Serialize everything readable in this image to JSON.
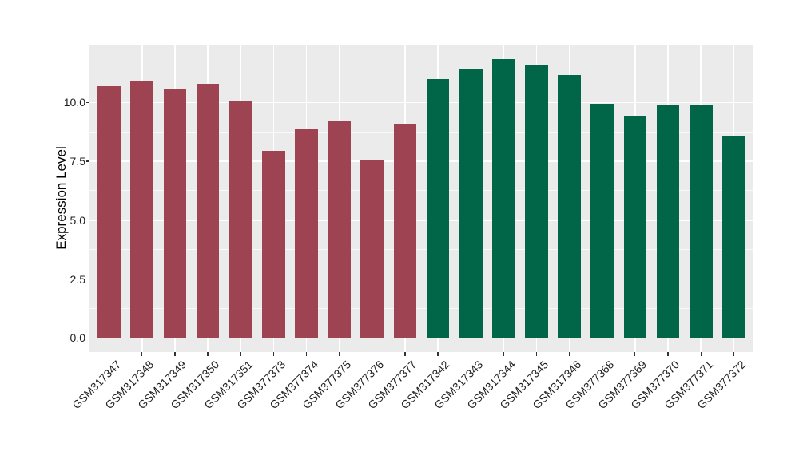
{
  "chart_data": {
    "type": "bar",
    "title": "",
    "xlabel": "",
    "ylabel": "Expression Level",
    "categories": [
      "GSM317347",
      "GSM317348",
      "GSM317349",
      "GSM317350",
      "GSM317351",
      "GSM377373",
      "GSM377374",
      "GSM377375",
      "GSM377376",
      "GSM377377",
      "GSM317342",
      "GSM317343",
      "GSM317344",
      "GSM317345",
      "GSM317346",
      "GSM377368",
      "GSM377369",
      "GSM377370",
      "GSM377371",
      "GSM377372"
    ],
    "values": [
      10.7,
      10.9,
      10.6,
      10.8,
      10.05,
      7.95,
      8.9,
      9.2,
      7.55,
      9.1,
      11.0,
      11.45,
      11.85,
      11.6,
      11.15,
      9.95,
      9.45,
      9.9,
      9.9,
      8.6
    ],
    "bar_groups": [
      "a",
      "a",
      "a",
      "a",
      "a",
      "a",
      "a",
      "a",
      "a",
      "a",
      "b",
      "b",
      "b",
      "b",
      "b",
      "b",
      "b",
      "b",
      "b",
      "b"
    ],
    "group_colors": {
      "a": "#9D4351",
      "b": "#006647"
    },
    "ylim": [
      -0.6,
      12.45
    ],
    "y_ticks": {
      "values": [
        0,
        2.5,
        5,
        7.5,
        10
      ],
      "labels": [
        "0.0",
        "2.5",
        "5.0",
        "7.5",
        "10.0"
      ]
    },
    "y_minor_ticks": [
      1.25,
      3.75,
      6.25,
      8.75,
      11.25
    ],
    "bar_width_fraction": 0.7,
    "x_tick_rotation_deg": 45,
    "grid": "on",
    "legend": "none",
    "panel_background": "#EBEBEB",
    "gridline_color": "#FFFFFF",
    "axis_text_color": "#1F1F1F"
  }
}
